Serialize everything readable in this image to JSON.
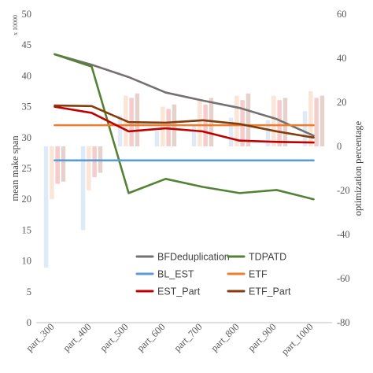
{
  "chart_data": {
    "type": "bar",
    "categories": [
      "part_300",
      "part_400",
      "part_500",
      "part_600",
      "part_700",
      "part_800",
      "part_900",
      "part_1000"
    ],
    "ylabel": "mean make span",
    "y2label": "optimization percentage",
    "unit_note": "x 10000",
    "ylim": [
      0,
      50
    ],
    "y_ticks": [
      "0",
      "5",
      "10",
      "15",
      "20",
      "25",
      "30",
      "35",
      "40",
      "45",
      "50"
    ],
    "y2lim": [
      -80,
      60
    ],
    "y2_ticks": [
      "-80",
      "-60",
      "-40",
      "-20",
      "0",
      "20",
      "40",
      "60"
    ],
    "grid": false,
    "legend_position": "lower-right",
    "line_series": [
      {
        "name": "BFDeduplication",
        "color": "#767171",
        "values": [
          43.5,
          41.8,
          39.8,
          37.3,
          36.0,
          34.8,
          33.0,
          30.3
        ]
      },
      {
        "name": "TDPATD",
        "color": "#548235",
        "values": [
          43.5,
          41.5,
          21.0,
          23.3,
          22.0,
          21.0,
          21.5,
          20.0
        ]
      },
      {
        "name": "BL_EST",
        "color": "#5B9BD5",
        "values": [
          26.3,
          26.3,
          26.3,
          26.3,
          26.3,
          26.3,
          26.3,
          26.3
        ]
      },
      {
        "name": "ETF",
        "color": "#ED7D31",
        "values": [
          32.0,
          32.0,
          32.0,
          32.0,
          32.0,
          32.0,
          32.0,
          32.0
        ]
      },
      {
        "name": "EST_Part",
        "color": "#C00000",
        "values": [
          35.0,
          34.0,
          31.0,
          31.5,
          31.0,
          29.5,
          29.3,
          29.2
        ]
      },
      {
        "name": "ETF_Part",
        "color": "#843C0C",
        "values": [
          35.2,
          35.1,
          32.5,
          32.4,
          32.8,
          32.2,
          31.0,
          30.0
        ]
      }
    ],
    "bar_series": [
      {
        "color": "#DEEBF7",
        "values": [
          -55,
          -38,
          14,
          7,
          10,
          13,
          12,
          16
        ]
      },
      {
        "color": "#FBE5D6",
        "values": [
          -24,
          -20,
          23,
          18,
          21,
          23,
          23,
          25
        ]
      },
      {
        "color": "#F4CCCC",
        "values": [
          -17,
          -14,
          22,
          17,
          19,
          21,
          21,
          22
        ]
      },
      {
        "color": "#E5D2CC",
        "values": [
          -16,
          -12,
          24,
          19,
          22,
          24,
          22,
          23
        ]
      }
    ]
  }
}
